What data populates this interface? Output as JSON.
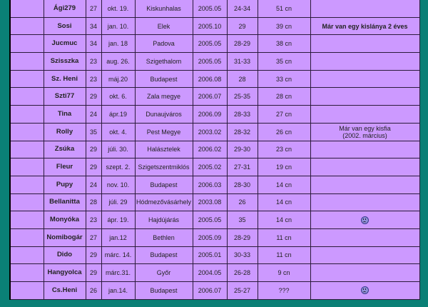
{
  "colors": {
    "background": "#0a8076",
    "table": "#cc99ff"
  },
  "rows": [
    {
      "name": "Ági279",
      "age": "27",
      "birthday": "okt. 19.",
      "city": "Kiskunhalas",
      "since": "2005.05",
      "cycle": "24-34",
      "count": "51 cn",
      "note": ""
    },
    {
      "name": "Sosi",
      "age": "34",
      "birthday": "jan. 10.",
      "city": "Elek",
      "since": "2005.10",
      "cycle": "29",
      "count": "39 cn",
      "note": "Már van egy kislánya 2 éves",
      "note_bold": true
    },
    {
      "name": "Jucmuc",
      "age": "34",
      "birthday": "jan. 18",
      "city": "Padova",
      "since": "2005.05",
      "cycle": "28-29",
      "count": "38 cn",
      "note": ""
    },
    {
      "name": "Szisszka",
      "age": "23",
      "birthday": "aug. 26.",
      "city": "Szigethalom",
      "since": "2005.05",
      "cycle": "31-33",
      "count": "35 cn",
      "note": ""
    },
    {
      "name": "Sz. Heni",
      "age": "23",
      "birthday": "máj.20",
      "city": "Budapest",
      "since": "2006.08",
      "cycle": "28",
      "count": "33 cn",
      "note": ""
    },
    {
      "name": "Szti77",
      "age": "29",
      "birthday": "okt. 6.",
      "city": "Zala megye",
      "since": "2006.07",
      "cycle": "25-35",
      "count": "28 cn",
      "note": ""
    },
    {
      "name": "Tina",
      "age": "24",
      "birthday": "ápr.19",
      "city": "Dunaujváros",
      "since": "2006.09",
      "cycle": "28-33",
      "count": "27 cn",
      "note": ""
    },
    {
      "name": "Rolly",
      "age": "35",
      "birthday": "okt. 4.",
      "city": "Pest Megye",
      "since": "2003.02",
      "cycle": "28-32",
      "count": "26 cn",
      "note": "Már van egy kisfia",
      "note2": "(2002. március)"
    },
    {
      "name": "Zsúka",
      "age": "29",
      "birthday": "júli. 30.",
      "city": "Halásztelek",
      "since": "2006.02",
      "cycle": "29-30",
      "count": "23 cn",
      "note": ""
    },
    {
      "name": "Fleur",
      "age": "29",
      "birthday": "szept. 2.",
      "city": "Szigetszentmiklós",
      "since": "2005.02",
      "cycle": "27-31",
      "count": "19 cn",
      "note": ""
    },
    {
      "name": "Pupy",
      "age": "24",
      "birthday": "nov. 10.",
      "city": "Budapest",
      "since": "2006.03",
      "cycle": "28-30",
      "count": "14 cn",
      "note": ""
    },
    {
      "name": "Bellanitta",
      "age": "28",
      "birthday": "júli. 29",
      "city": "Hódmezővásárhely",
      "since": "2003.08",
      "cycle": "26",
      "count": "14 cn",
      "note": ""
    },
    {
      "name": "Monyóka",
      "age": "23",
      "birthday": "ápr. 19.",
      "city": "Hajdújárás",
      "since": "2005.05",
      "cycle": "35",
      "count": "14 cn",
      "note": "",
      "icon": "sad-face-icon"
    },
    {
      "name": "Nomibogár",
      "age": "27",
      "birthday": "jan.12",
      "city": "Bethlen",
      "since": "2005.09",
      "cycle": "28-29",
      "count": "11 cn",
      "note": ""
    },
    {
      "name": "Dido",
      "age": "29",
      "birthday": "márc. 14.",
      "city": "Budapest",
      "since": "2005.01",
      "cycle": "30-33",
      "count": "11 cn",
      "note": ""
    },
    {
      "name": "Hangyolca",
      "age": "29",
      "birthday": "márc.31.",
      "city": "Győr",
      "since": "2004.05",
      "cycle": "26-28",
      "count": "9 cn",
      "note": ""
    },
    {
      "name": "Cs.Heni",
      "age": "26",
      "birthday": "jan.14.",
      "city": "Budapest",
      "since": "2006.07",
      "cycle": "25-27",
      "count": "???",
      "note": "",
      "icon": "sad-face-icon"
    }
  ]
}
